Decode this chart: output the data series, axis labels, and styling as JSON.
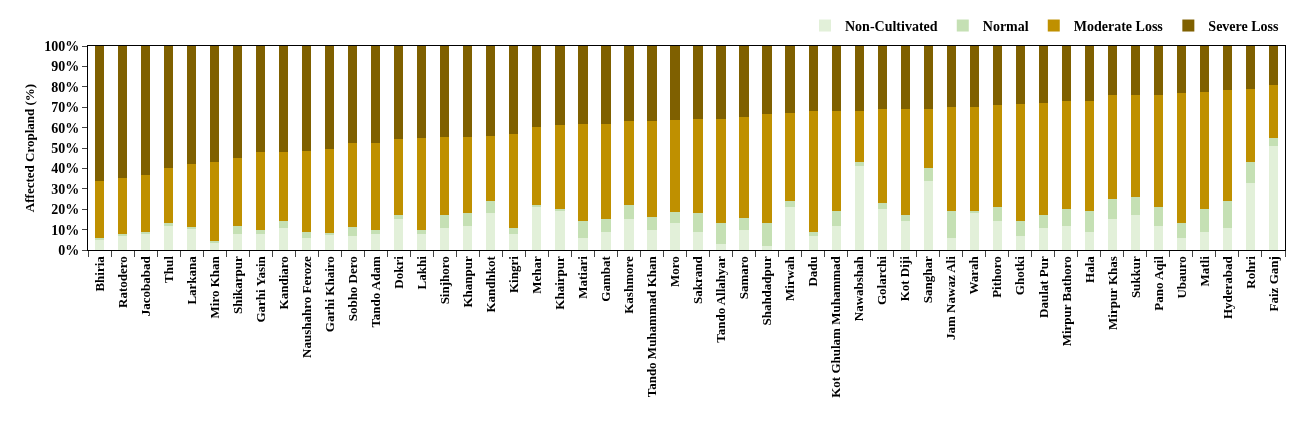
{
  "chart_data": {
    "type": "bar",
    "stacked": true,
    "ylabel": "Affected Cropland (%)",
    "categories": [
      "Bhiria",
      "Ratodero",
      "Jacobabad",
      "Thul",
      "Larkana",
      "Miro Khan",
      "Shikarpur",
      "Garhi Yasin",
      "Kandiaro",
      "Naushahro Feroze",
      "Garhi Khairo",
      "Sobho Dero",
      "Tando Adam",
      "Dokri",
      "Lakhi",
      "Sinjhoro",
      "Khanpur",
      "Kandhkot",
      "Kingri",
      "Mehar",
      "Khairpur",
      "Matiari",
      "Gambat",
      "Kashmore",
      "Tando Muhammad Khan",
      "Moro",
      "Sakrand",
      "Tando Allahyar",
      "Samaro",
      "Shahdadpur",
      "Mirwah",
      "Dadu",
      "Kot Ghulam Muhammad",
      "Nawabshah",
      "Golarchi",
      "Kot Diji",
      "Sanghar",
      "Jam Nawaz Ali",
      "Warah",
      "Pithoro",
      "Ghotki",
      "Daulat Pur",
      "Mirpur Bathoro",
      "Hala",
      "Mirpur Khas",
      "Sukkur",
      "Pano Aqil",
      "Ubauro",
      "Matli",
      "Hyderabad",
      "Rohri",
      "Faiz Ganj"
    ],
    "series": [
      {
        "name": "Non-Cultivated",
        "color": "#e2f0d9",
        "values": [
          5,
          7,
          8,
          12,
          10.5,
          3.5,
          8,
          8,
          11,
          6,
          7.5,
          7,
          8,
          15,
          8,
          11,
          12,
          18,
          8,
          21,
          19,
          6,
          9,
          15,
          10,
          13,
          9,
          3,
          10,
          2,
          21,
          7,
          12,
          41,
          20,
          14,
          34,
          6,
          18,
          14,
          7,
          11,
          12,
          9,
          15,
          17,
          12,
          6,
          9,
          11,
          33,
          51
        ]
      },
      {
        "name": "Normal",
        "color": "#c5e0b4",
        "values": [
          1,
          1,
          1,
          1,
          1,
          1,
          4,
          2,
          3,
          3,
          1,
          4.5,
          2,
          2,
          2,
          6,
          6,
          6,
          3,
          1,
          1,
          8,
          6,
          7,
          6,
          5.5,
          9,
          10,
          5.5,
          11,
          3,
          2,
          7,
          2,
          3,
          3,
          6,
          13,
          1,
          7,
          7,
          6,
          8,
          10,
          10,
          9,
          9,
          7,
          11,
          13,
          10,
          4
        ]
      },
      {
        "name": "Moderate Loss",
        "color": "#bf9000",
        "values": [
          28,
          27.5,
          28,
          27,
          30.5,
          38.5,
          33,
          38,
          34,
          39.5,
          41,
          41,
          42.5,
          37.5,
          45,
          38.5,
          37.5,
          32,
          46,
          38.5,
          41.5,
          48,
          47,
          41,
          47,
          45,
          46,
          51,
          49.5,
          53.5,
          43,
          59,
          49,
          25,
          46,
          52,
          29,
          51,
          51,
          50,
          57.5,
          55,
          53,
          54,
          51,
          50,
          55,
          64,
          57.5,
          54.5,
          36,
          26
        ]
      },
      {
        "name": "Severe Loss",
        "color": "#7f6000",
        "values": [
          66,
          64.5,
          63,
          60,
          58,
          57,
          55,
          52,
          52,
          51.5,
          50.5,
          47.5,
          47.5,
          45.5,
          45,
          44.5,
          44.5,
          44,
          43,
          39.5,
          38.5,
          38,
          38,
          37,
          37,
          36.5,
          36,
          36,
          35,
          33.5,
          33,
          32,
          32,
          32,
          31,
          31,
          31,
          30,
          30,
          29,
          28.5,
          28,
          27,
          27,
          24,
          24,
          24,
          23,
          22.5,
          21.5,
          21,
          19
        ]
      }
    ],
    "ylim": [
      0,
      100
    ],
    "yticks": [
      {
        "value": 0,
        "label": "0%"
      },
      {
        "value": 10,
        "label": "10%"
      },
      {
        "value": 20,
        "label": "20%"
      },
      {
        "value": 30,
        "label": "30%"
      },
      {
        "value": 40,
        "label": "40%"
      },
      {
        "value": 50,
        "label": "50%"
      },
      {
        "value": 60,
        "label": "60%"
      },
      {
        "value": 70,
        "label": "70%"
      },
      {
        "value": 80,
        "label": "80%"
      },
      {
        "value": 90,
        "label": "90%"
      },
      {
        "value": 100,
        "label": "100%"
      }
    ],
    "grid": false,
    "legend": "top right"
  }
}
